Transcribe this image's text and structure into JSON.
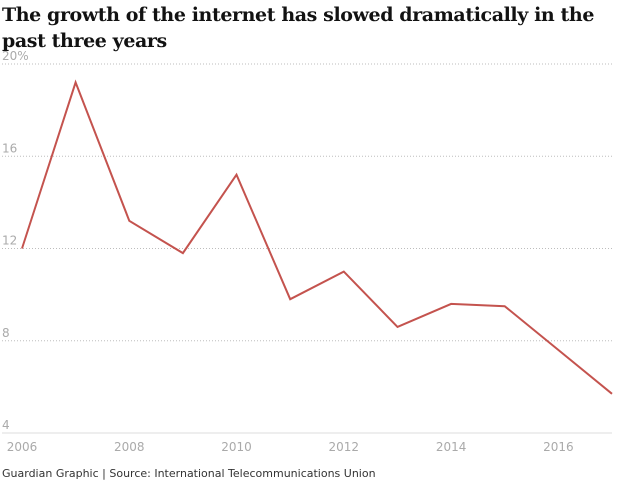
{
  "title": "The growth of the internet has slowed dramatically in the past three years",
  "source": "Guardian Graphic | Source: International Telecommunications Union",
  "colors": {
    "line": "#c4534e",
    "gridline": "#bdbdbd",
    "tick_label": "#aaaaaa",
    "baseline": "#dddddd"
  },
  "chart_data": {
    "type": "line",
    "title": "The growth of the internet has slowed dramatically in the past three years",
    "xlabel": "",
    "ylabel": "",
    "xlim": [
      2006,
      2017
    ],
    "ylim": [
      4,
      20
    ],
    "x_ticks": [
      2006,
      2008,
      2010,
      2012,
      2014,
      2016
    ],
    "y_ticks": [
      4,
      8,
      12,
      16,
      20
    ],
    "y_tick_labels": [
      "4",
      "8",
      "12",
      "16",
      "20%"
    ],
    "grid": "horizontal dotted",
    "series": [
      {
        "color": "#c4534e",
        "x": [
          2006,
          2007,
          2008,
          2009,
          2010,
          2011,
          2012,
          2013,
          2014,
          2015,
          2016,
          2017
        ],
        "y": [
          12.0,
          19.2,
          13.2,
          11.8,
          15.2,
          9.8,
          11.0,
          8.6,
          9.6,
          9.5,
          7.6,
          5.7
        ]
      }
    ]
  }
}
